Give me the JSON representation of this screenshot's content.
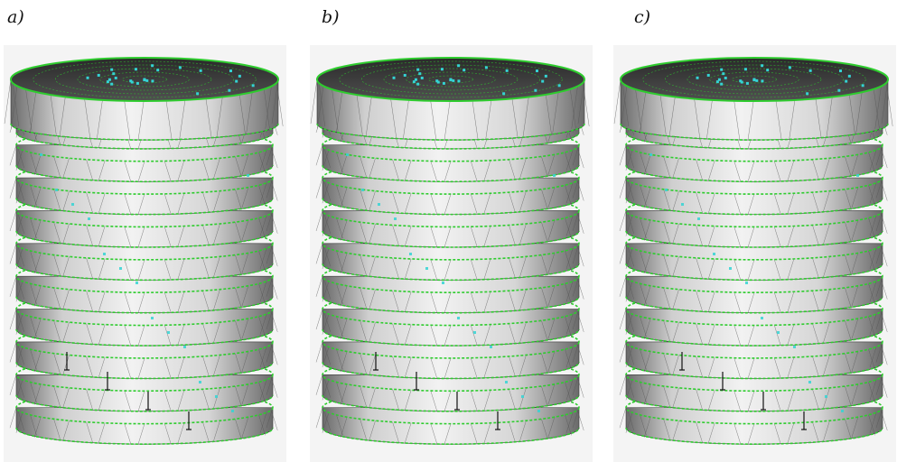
{
  "panels": [
    {
      "label": "a)",
      "ring_count": 11
    },
    {
      "label": "b)",
      "ring_count": 11
    },
    {
      "label": "c)",
      "ring_count": 11
    }
  ],
  "colors": {
    "background": "#ffffff",
    "panel_bg": "#f4f4f4",
    "mesh_edge": "#2ecc2e",
    "node_marker": "#34d3d3",
    "surface_light": "#f2f2f2",
    "surface_dark": "#6a6a6a",
    "wire": "#3a3a3a"
  },
  "icons": [
    "fe-mesh-cylinder-icon"
  ]
}
